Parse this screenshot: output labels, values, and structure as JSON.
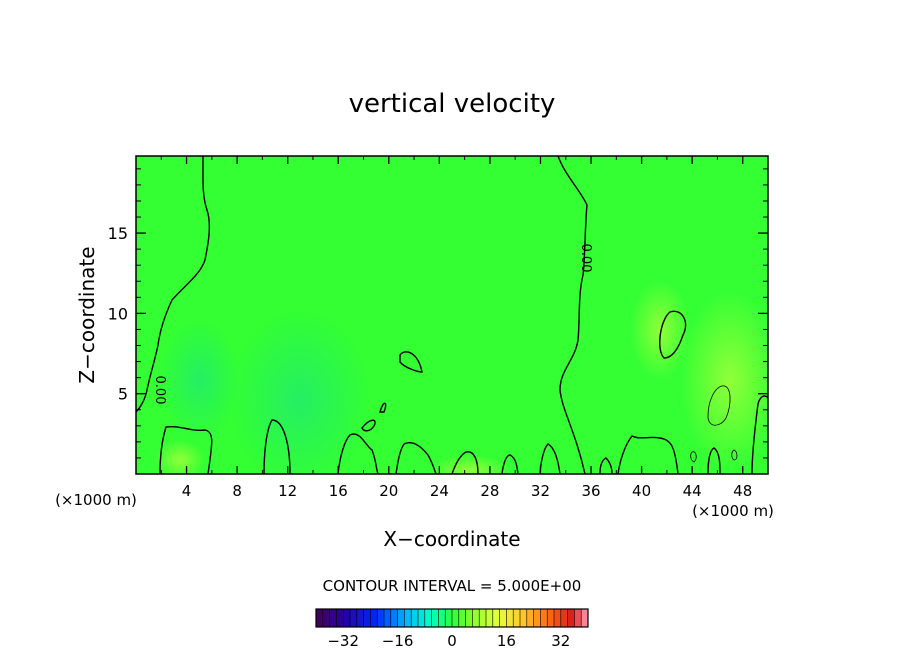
{
  "chart_data": {
    "type": "heatmap",
    "title": "vertical velocity",
    "xlabel": "X−coordinate",
    "ylabel": "Z−coordinate",
    "x_unit_left": "(×1000 m)",
    "x_unit_right": "(×1000 m)",
    "xlim": [
      0,
      50
    ],
    "ylim": [
      0,
      19.8
    ],
    "x_ticks": [
      4,
      8,
      12,
      16,
      20,
      24,
      28,
      32,
      36,
      40,
      44,
      48
    ],
    "y_ticks": [
      5,
      10,
      15
    ],
    "contour_label_1": "0.00",
    "contour_label_2": "0.00",
    "contour_interval_text": "CONTOUR INTERVAL = 5.000E+00",
    "colorbar": {
      "min": -40,
      "max": 40,
      "ticks": [
        -32,
        -16,
        0,
        16,
        32
      ]
    },
    "colors": {
      "field_base": "#33ff33",
      "field_light": "#88ff44",
      "field_cool": "#22ee77",
      "line": "#000000"
    }
  }
}
